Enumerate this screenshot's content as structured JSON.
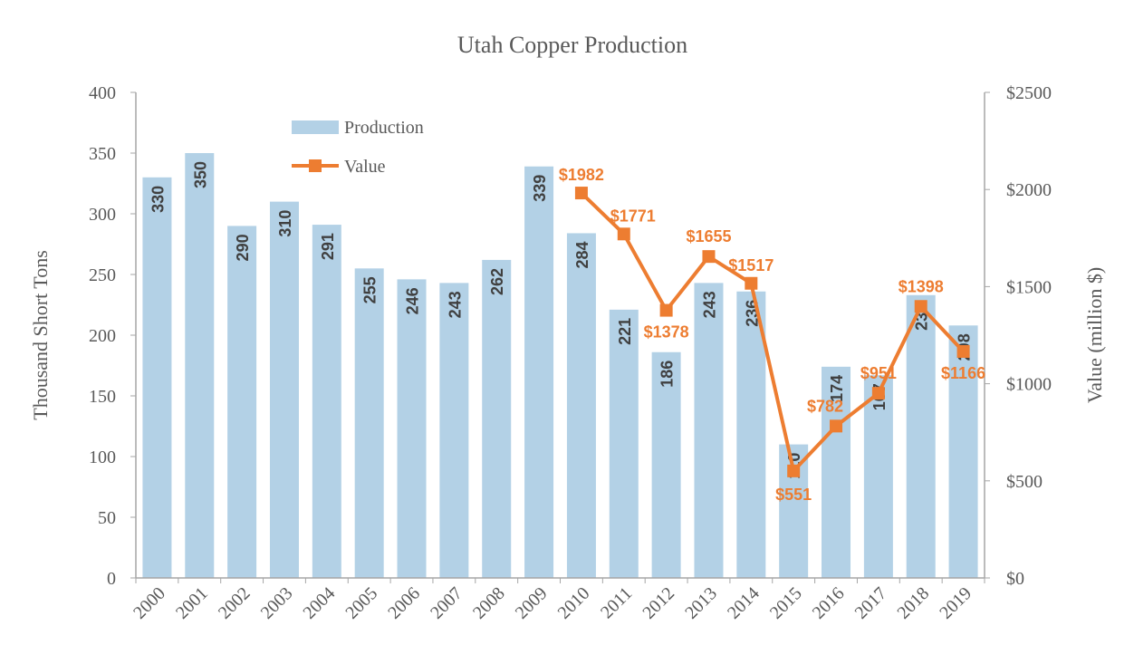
{
  "chart_data": {
    "type": "bar+line",
    "title": "Utah Copper Production",
    "ylabel": "Thousand Short Tons",
    "y2label": "Value (million $)",
    "ylim": [
      0,
      400
    ],
    "y2lim": [
      0,
      2500
    ],
    "yticks": [
      "0",
      "50",
      "100",
      "150",
      "200",
      "250",
      "300",
      "350",
      "400"
    ],
    "y2ticks": [
      "$0",
      "$500",
      "$1000",
      "$1500",
      "$2000",
      "$2500"
    ],
    "categories": [
      "2000",
      "2001",
      "2002",
      "2003",
      "2004",
      "2005",
      "2006",
      "2007",
      "2008",
      "2009",
      "2010",
      "2011",
      "2012",
      "2013",
      "2014",
      "2015",
      "2016",
      "2017",
      "2018",
      "2019"
    ],
    "legend_position": "top-left",
    "grid": false,
    "series": [
      {
        "name": "Production",
        "type": "bar",
        "axis": "left",
        "color": "#b3d1e6",
        "values": [
          330,
          350,
          290,
          310,
          291,
          255,
          246,
          243,
          262,
          339,
          284,
          221,
          186,
          243,
          236,
          110,
          174,
          167,
          233,
          208
        ],
        "labels": [
          "330",
          "350",
          "290",
          "310",
          "291",
          "255",
          "246",
          "243",
          "262",
          "339",
          "284",
          "221",
          "186",
          "243",
          "236",
          "110",
          "174",
          "167",
          "233",
          "208"
        ]
      },
      {
        "name": "Value",
        "type": "line",
        "axis": "right",
        "color": "#ed7d31",
        "x": [
          "2010",
          "2011",
          "2012",
          "2013",
          "2014",
          "2015",
          "2016",
          "2017",
          "2018",
          "2019"
        ],
        "values": [
          1982,
          1771,
          1378,
          1655,
          1517,
          551,
          782,
          951,
          1398,
          1166
        ],
        "labels": [
          "$1982",
          "$1771",
          "$1378",
          "$1655",
          "$1517",
          "$551",
          "$782",
          "$951",
          "$1398",
          "$1166"
        ]
      }
    ]
  }
}
